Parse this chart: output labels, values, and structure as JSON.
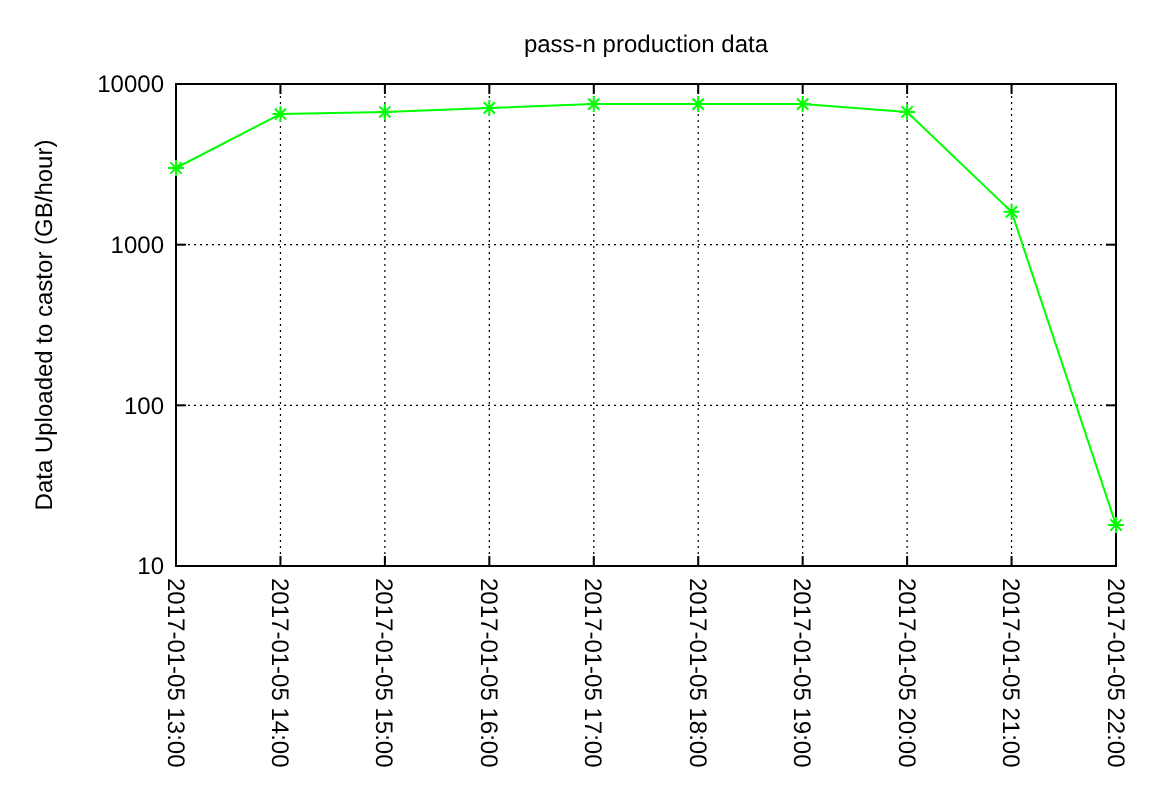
{
  "chart_data": {
    "type": "line",
    "title": "pass-n production data",
    "ylabel": "Data Uploaded to castor (GB/hour)",
    "x": [
      "2017-01-05T13:00",
      "2017-01-05T14:00",
      "2017-01-05T15:00",
      "2017-01-05T16:00",
      "2017-01-05T17:00",
      "2017-01-05T18:00",
      "2017-01-05T19:00",
      "2017-01-05T20:00",
      "2017-01-05T21:00",
      "2017-01-05T22:00"
    ],
    "series": [
      {
        "color": "#00ff00",
        "values": [
          3000,
          6500,
          6700,
          7100,
          7500,
          7500,
          7500,
          6700,
          1600,
          18
        ]
      }
    ],
    "xlim": [
      "2017-01-05T13:00",
      "2017-01-05T22:00"
    ],
    "xticks": [
      {
        "value": "2017-01-05T13:00",
        "label": "2017-01-05 13:00"
      },
      {
        "value": "2017-01-05T14:00",
        "label": "2017-01-05 14:00"
      },
      {
        "value": "2017-01-05T15:00",
        "label": "2017-01-05 15:00"
      },
      {
        "value": "2017-01-05T16:00",
        "label": "2017-01-05 16:00"
      },
      {
        "value": "2017-01-05T17:00",
        "label": "2017-01-05 17:00"
      },
      {
        "value": "2017-01-05T18:00",
        "label": "2017-01-05 18:00"
      },
      {
        "value": "2017-01-05T19:00",
        "label": "2017-01-05 19:00"
      },
      {
        "value": "2017-01-05T20:00",
        "label": "2017-01-05 20:00"
      },
      {
        "value": "2017-01-05T21:00",
        "label": "2017-01-05 21:00"
      },
      {
        "value": "2017-01-05T22:00",
        "label": "2017-01-05 22:00"
      }
    ],
    "ylim": [
      10,
      10000
    ],
    "yticks": [
      10,
      100,
      1000,
      10000
    ],
    "log": true,
    "grid": true,
    "marker": "cross",
    "line_style": "solid"
  }
}
